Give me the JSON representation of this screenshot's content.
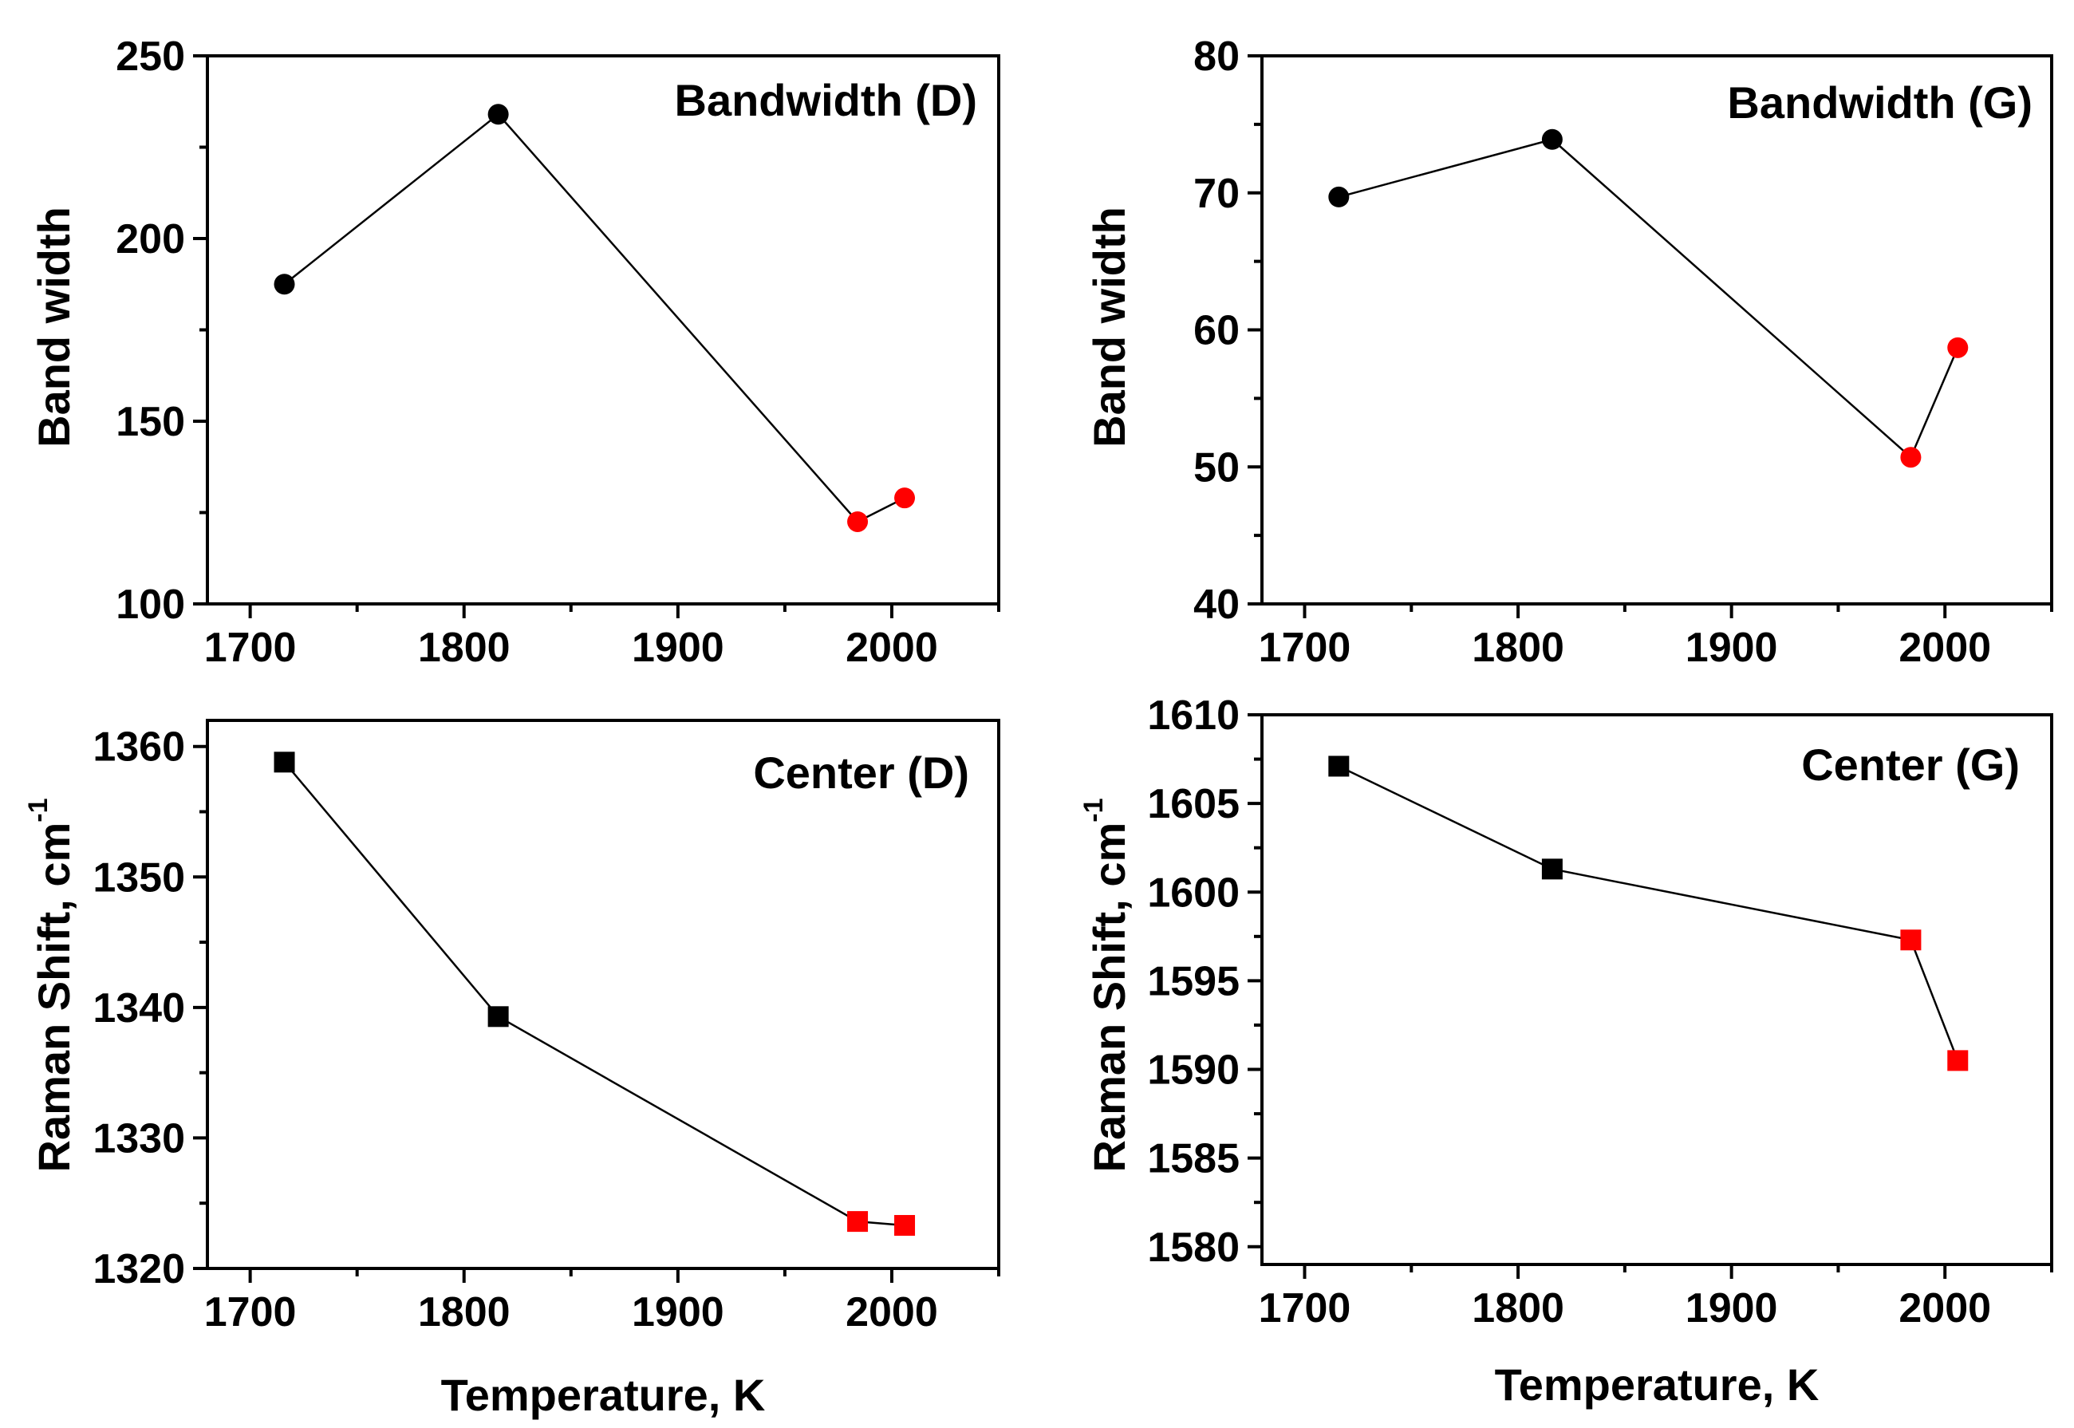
{
  "figure": {
    "shared_xlabel": "Temperature, K",
    "colors": {
      "black": "#000000",
      "red": "#ff0000"
    }
  },
  "chart_data": [
    {
      "type": "line",
      "title": "Bandwidth (D)",
      "xlabel": "",
      "ylabel": "Band width",
      "xlim": [
        1680,
        2050
      ],
      "ylim": [
        100,
        250
      ],
      "xticks": [
        1700,
        1800,
        1900,
        2000
      ],
      "yticks": [
        100,
        150,
        200,
        250
      ],
      "marker": "circle",
      "points": [
        {
          "x": 1716,
          "y": 187.5,
          "color": "#000000"
        },
        {
          "x": 1816,
          "y": 234,
          "color": "#000000"
        },
        {
          "x": 1984,
          "y": 122.5,
          "color": "#ff0000"
        },
        {
          "x": 2006,
          "y": 129,
          "color": "#ff0000"
        }
      ]
    },
    {
      "type": "line",
      "title": "Bandwidth (G)",
      "xlabel": "",
      "ylabel": "Band width",
      "xlim": [
        1680,
        2050
      ],
      "ylim": [
        40,
        80
      ],
      "xticks": [
        1700,
        1800,
        1900,
        2000
      ],
      "yticks": [
        40,
        50,
        60,
        70,
        80
      ],
      "marker": "circle",
      "points": [
        {
          "x": 1716,
          "y": 69.7,
          "color": "#000000"
        },
        {
          "x": 1816,
          "y": 73.9,
          "color": "#000000"
        },
        {
          "x": 1984,
          "y": 50.7,
          "color": "#ff0000"
        },
        {
          "x": 2006,
          "y": 58.7,
          "color": "#ff0000"
        }
      ]
    },
    {
      "type": "line",
      "title": "Center (D)",
      "xlabel": "Temperature, K",
      "ylabel": "Raman Shift, cm",
      "ylabel_superscript": "-1",
      "xlim": [
        1680,
        2050
      ],
      "ylim": [
        1320,
        1362
      ],
      "xticks": [
        1700,
        1800,
        1900,
        2000
      ],
      "yticks": [
        1320,
        1330,
        1340,
        1350,
        1360
      ],
      "marker": "square",
      "points": [
        {
          "x": 1716,
          "y": 1358.8,
          "color": "#000000"
        },
        {
          "x": 1816,
          "y": 1339.3,
          "color": "#000000"
        },
        {
          "x": 1984,
          "y": 1323.6,
          "color": "#ff0000"
        },
        {
          "x": 2006,
          "y": 1323.3,
          "color": "#ff0000"
        }
      ]
    },
    {
      "type": "line",
      "title": "Center (G)",
      "xlabel": "Temperature, K",
      "ylabel": "Raman Shift, cm",
      "ylabel_superscript": "-1",
      "xlim": [
        1680,
        2050
      ],
      "ylim": [
        1579,
        1610
      ],
      "xticks": [
        1700,
        1800,
        1900,
        2000
      ],
      "yticks": [
        1580,
        1585,
        1590,
        1595,
        1600,
        1605,
        1610
      ],
      "marker": "square",
      "points": [
        {
          "x": 1716,
          "y": 1607.1,
          "color": "#000000"
        },
        {
          "x": 1816,
          "y": 1601.3,
          "color": "#000000"
        },
        {
          "x": 1984,
          "y": 1597.3,
          "color": "#ff0000"
        },
        {
          "x": 2006,
          "y": 1590.5,
          "color": "#ff0000"
        }
      ]
    }
  ]
}
